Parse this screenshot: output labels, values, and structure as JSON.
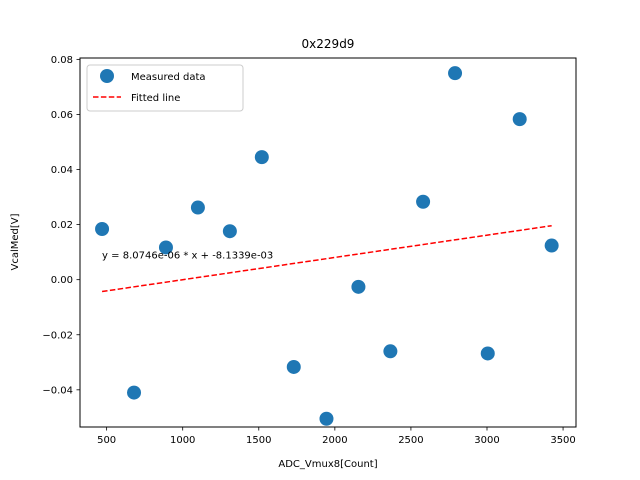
{
  "chart_data": {
    "type": "scatter",
    "title": "0x229d9",
    "xlabel": "ADC_Vmux8[Count]",
    "ylabel": "VcalMed[V]",
    "xlim": [
      325,
      3585
    ],
    "ylim": [
      -0.0535,
      0.0805
    ],
    "xticks": [
      500,
      1000,
      1500,
      2000,
      2500,
      3000,
      3500
    ],
    "xtick_labels": [
      "500",
      "1000",
      "1500",
      "2000",
      "2500",
      "3000",
      "3500"
    ],
    "yticks": [
      -0.04,
      -0.02,
      0.0,
      0.02,
      0.04,
      0.06,
      0.08
    ],
    "ytick_labels": [
      "−0.04",
      "−0.02",
      "0.00",
      "0.02",
      "0.04",
      "0.06",
      "0.08"
    ],
    "legend_position": "upper-left",
    "grid": false,
    "series": [
      {
        "name": "Measured data",
        "kind": "scatter",
        "color": "#1f77b4",
        "points": [
          {
            "x": 470,
            "y": 0.0184
          },
          {
            "x": 680,
            "y": -0.041
          },
          {
            "x": 890,
            "y": 0.0117
          },
          {
            "x": 1100,
            "y": 0.0262
          },
          {
            "x": 1310,
            "y": 0.0176
          },
          {
            "x": 1520,
            "y": 0.0445
          },
          {
            "x": 1730,
            "y": -0.0317
          },
          {
            "x": 1945,
            "y": -0.0505
          },
          {
            "x": 2155,
            "y": -0.0026
          },
          {
            "x": 2365,
            "y": -0.026
          },
          {
            "x": 2580,
            "y": 0.0283
          },
          {
            "x": 2790,
            "y": 0.075
          },
          {
            "x": 3005,
            "y": -0.0268
          },
          {
            "x": 3215,
            "y": 0.0583
          },
          {
            "x": 3425,
            "y": 0.0124
          }
        ]
      },
      {
        "name": "Fitted line",
        "kind": "line",
        "style": "dashed",
        "color": "#ff0000",
        "points": [
          {
            "x": 470,
            "y": -0.0043
          },
          {
            "x": 3425,
            "y": 0.0196
          }
        ]
      }
    ],
    "annotations": [
      {
        "text": "y = 8.0746e-06 * x + -8.1339e-03",
        "x": 470,
        "y": 0.0092
      }
    ]
  }
}
